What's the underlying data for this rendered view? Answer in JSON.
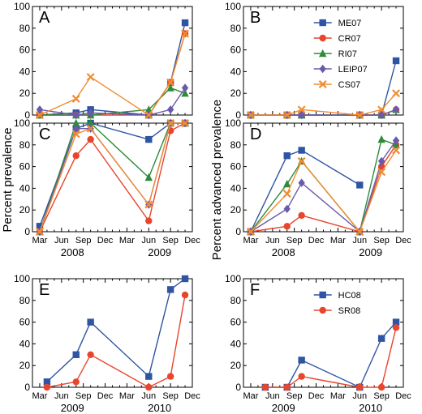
{
  "figure": {
    "ylabel_left": "Percent prevalence",
    "ylabel_right": "Percent advanced prevalence"
  },
  "month_ticks": [
    "Mar",
    "Jun",
    "Sep",
    "Dec"
  ],
  "series_styles": {
    "ME07": {
      "color": "#2e55a3",
      "marker": "square"
    },
    "CR07": {
      "color": "#e8452c",
      "marker": "circle"
    },
    "RI07": {
      "color": "#2e8b3a",
      "marker": "triangle"
    },
    "LEIP07": {
      "color": "#6a5aad",
      "marker": "diamond"
    },
    "CS07": {
      "color": "#f08c30",
      "marker": "x"
    },
    "HC08": {
      "color": "#2e55a3",
      "marker": "square"
    },
    "SR08": {
      "color": "#e8452c",
      "marker": "circle"
    }
  },
  "chart_data": [
    {
      "panel": "A",
      "type": "line",
      "ylim": [
        0,
        100
      ],
      "yticks": [
        0,
        20,
        40,
        60,
        80,
        100
      ],
      "x_axis": "2008-2009",
      "show_xtick_labels": false,
      "legend": null,
      "series": [
        {
          "name": "ME07",
          "x": [
            "2008-03",
            "2008-08",
            "2008-10",
            "2009-06",
            "2009-09",
            "2009-11"
          ],
          "y": [
            0,
            2,
            5,
            0,
            30,
            85
          ]
        },
        {
          "name": "CR07",
          "x": [
            "2008-03",
            "2008-08",
            "2008-10",
            "2009-06",
            "2009-09",
            "2009-11"
          ],
          "y": [
            0,
            0,
            0,
            0,
            30,
            75
          ]
        },
        {
          "name": "RI07",
          "x": [
            "2008-03",
            "2008-08",
            "2008-10",
            "2009-06",
            "2009-09",
            "2009-11"
          ],
          "y": [
            0,
            0,
            0,
            5,
            25,
            20
          ]
        },
        {
          "name": "LEIP07",
          "x": [
            "2008-03",
            "2008-08",
            "2008-10",
            "2009-06",
            "2009-09",
            "2009-11"
          ],
          "y": [
            5,
            0,
            2,
            0,
            5,
            25
          ]
        },
        {
          "name": "CS07",
          "x": [
            "2008-03",
            "2008-08",
            "2008-10",
            "2009-06",
            "2009-09",
            "2009-11"
          ],
          "y": [
            0,
            15,
            35,
            0,
            30,
            75
          ]
        }
      ]
    },
    {
      "panel": "B",
      "type": "line",
      "ylim": [
        0,
        100
      ],
      "yticks": [
        0,
        20,
        40,
        60,
        80,
        100
      ],
      "x_axis": "2008-2009",
      "show_xtick_labels": false,
      "legend": "top-right",
      "series": [
        {
          "name": "ME07",
          "x": [
            "2008-03",
            "2008-08",
            "2008-10",
            "2009-06",
            "2009-09",
            "2009-11"
          ],
          "y": [
            0,
            0,
            0,
            0,
            0,
            50
          ]
        },
        {
          "name": "CR07",
          "x": [
            "2008-03",
            "2008-08",
            "2008-10",
            "2009-06",
            "2009-09",
            "2009-11"
          ],
          "y": [
            0,
            0,
            0,
            0,
            0,
            5
          ]
        },
        {
          "name": "RI07",
          "x": [
            "2008-03",
            "2008-08",
            "2008-10",
            "2009-06",
            "2009-09",
            "2009-11"
          ],
          "y": [
            0,
            0,
            0,
            0,
            0,
            5
          ]
        },
        {
          "name": "LEIP07",
          "x": [
            "2008-03",
            "2008-08",
            "2008-10",
            "2009-06",
            "2009-09",
            "2009-11"
          ],
          "y": [
            0,
            0,
            0,
            0,
            0,
            5
          ]
        },
        {
          "name": "CS07",
          "x": [
            "2008-03",
            "2008-08",
            "2008-10",
            "2009-06",
            "2009-09",
            "2009-11"
          ],
          "y": [
            0,
            0,
            5,
            0,
            5,
            20
          ]
        }
      ]
    },
    {
      "panel": "C",
      "type": "line",
      "ylim": [
        0,
        100
      ],
      "yticks": [
        0,
        20,
        40,
        60,
        80,
        100
      ],
      "x_axis": "2008-2009",
      "show_xtick_labels": true,
      "legend": null,
      "series": [
        {
          "name": "ME07",
          "x": [
            "2008-03",
            "2008-08",
            "2008-10",
            "2009-06",
            "2009-09",
            "2009-11"
          ],
          "y": [
            5,
            95,
            100,
            85,
            100,
            100
          ]
        },
        {
          "name": "CR07",
          "x": [
            "2008-03",
            "2008-08",
            "2008-10",
            "2009-06",
            "2009-09",
            "2009-11"
          ],
          "y": [
            0,
            70,
            85,
            10,
            93,
            100
          ]
        },
        {
          "name": "RI07",
          "x": [
            "2008-03",
            "2008-08",
            "2008-10",
            "2009-06",
            "2009-09",
            "2009-11"
          ],
          "y": [
            0,
            100,
            100,
            50,
            100,
            100
          ]
        },
        {
          "name": "LEIP07",
          "x": [
            "2008-03",
            "2008-08",
            "2008-10",
            "2009-06",
            "2009-09",
            "2009-11"
          ],
          "y": [
            0,
            95,
            95,
            25,
            100,
            100
          ]
        },
        {
          "name": "CS07",
          "x": [
            "2008-03",
            "2008-08",
            "2008-10",
            "2009-06",
            "2009-09",
            "2009-11"
          ],
          "y": [
            0,
            90,
            95,
            25,
            100,
            100
          ]
        }
      ]
    },
    {
      "panel": "D",
      "type": "line",
      "ylim": [
        0,
        100
      ],
      "yticks": [
        0,
        20,
        40,
        60,
        80,
        100
      ],
      "x_axis": "2008-2009",
      "show_xtick_labels": true,
      "legend": null,
      "series": [
        {
          "name": "ME07",
          "x": [
            "2008-03",
            "2008-08",
            "2008-10",
            "2009-06",
            "2009-09",
            "2009-11"
          ],
          "y": [
            0,
            70,
            75,
            43,
            null,
            null
          ]
        },
        {
          "name": "CR07",
          "x": [
            "2008-03",
            "2008-08",
            "2008-10",
            "2009-06",
            "2009-09",
            "2009-11"
          ],
          "y": [
            0,
            5,
            15,
            0,
            60,
            80
          ]
        },
        {
          "name": "RI07",
          "x": [
            "2008-03",
            "2008-08",
            "2008-10",
            "2009-06",
            "2009-09",
            "2009-11"
          ],
          "y": [
            0,
            44,
            65,
            0,
            85,
            80
          ]
        },
        {
          "name": "LEIP07",
          "x": [
            "2008-03",
            "2008-08",
            "2008-10",
            "2009-06",
            "2009-09",
            "2009-11"
          ],
          "y": [
            0,
            21,
            45,
            0,
            65,
            84
          ]
        },
        {
          "name": "CS07",
          "x": [
            "2008-03",
            "2008-08",
            "2008-10",
            "2009-06",
            "2009-09",
            "2009-11"
          ],
          "y": [
            0,
            35,
            65,
            0,
            55,
            75
          ]
        }
      ]
    },
    {
      "panel": "E",
      "type": "line",
      "ylim": [
        0,
        100
      ],
      "yticks": [
        0,
        20,
        40,
        60,
        80,
        100
      ],
      "x_axis": "2009-2010",
      "show_xtick_labels": true,
      "legend": null,
      "series": [
        {
          "name": "HC08",
          "x": [
            "2009-04",
            "2009-08",
            "2009-10",
            "2010-06",
            "2010-09",
            "2010-11"
          ],
          "y": [
            5,
            30,
            60,
            10,
            90,
            100
          ]
        },
        {
          "name": "SR08",
          "x": [
            "2009-04",
            "2009-08",
            "2009-10",
            "2010-06",
            "2010-09",
            "2010-11"
          ],
          "y": [
            0,
            5,
            30,
            0,
            10,
            85
          ]
        }
      ]
    },
    {
      "panel": "F",
      "type": "line",
      "ylim": [
        0,
        100
      ],
      "yticks": [
        0,
        20,
        40,
        60,
        80,
        100
      ],
      "x_axis": "2009-2010",
      "show_xtick_labels": true,
      "legend": "top-right",
      "series": [
        {
          "name": "HC08",
          "x": [
            "2009-05",
            "2009-08",
            "2009-10",
            "2010-06",
            "2010-09",
            "2010-11"
          ],
          "y": [
            0,
            0,
            25,
            0,
            45,
            60
          ]
        },
        {
          "name": "SR08",
          "x": [
            "2009-05",
            "2009-08",
            "2009-10",
            "2010-06",
            "2010-09",
            "2010-11"
          ],
          "y": [
            0,
            0,
            10,
            0,
            0,
            55
          ]
        }
      ]
    }
  ]
}
